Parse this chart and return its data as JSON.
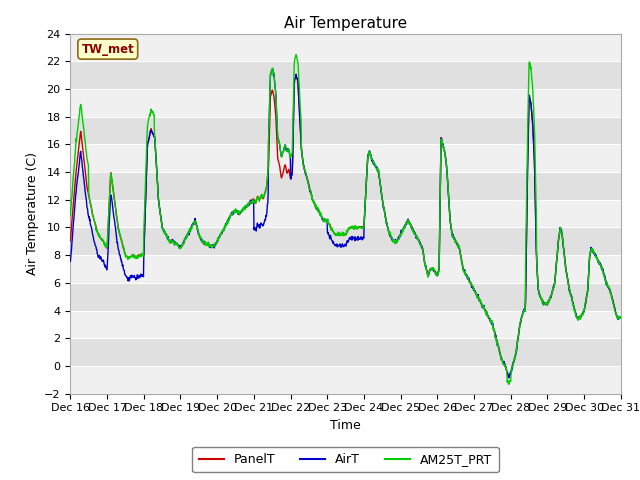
{
  "title": "Air Temperature",
  "ylabel": "Air Temperature (C)",
  "xlabel": "Time",
  "station_label": "TW_met",
  "ylim": [
    -2,
    24
  ],
  "yticks": [
    -2,
    0,
    2,
    4,
    6,
    8,
    10,
    12,
    14,
    16,
    18,
    20,
    22,
    24
  ],
  "series": {
    "PanelT": {
      "color": "#cc0000",
      "lw": 1.0
    },
    "AirT": {
      "color": "#0000cc",
      "lw": 1.0
    },
    "AM25T_PRT": {
      "color": "#00cc00",
      "lw": 1.0
    }
  },
  "fig_bg_color": "#ffffff",
  "plot_bg_color": "#e8e8e8",
  "band_color_light": "#f0f0f0",
  "band_color_dark": "#e0e0e0",
  "title_fontsize": 11,
  "axis_label_fontsize": 9,
  "tick_fontsize": 8,
  "legend_fontsize": 9,
  "waypoints_base": [
    [
      0.0,
      9.0
    ],
    [
      0.15,
      14.0
    ],
    [
      0.28,
      17.0
    ],
    [
      0.45,
      13.0
    ],
    [
      0.6,
      11.0
    ],
    [
      0.75,
      9.5
    ],
    [
      0.9,
      9.0
    ],
    [
      1.0,
      8.5
    ],
    [
      1.1,
      14.0
    ],
    [
      1.2,
      12.0
    ],
    [
      1.3,
      10.0
    ],
    [
      1.4,
      9.0
    ],
    [
      1.5,
      8.0
    ],
    [
      1.6,
      7.8
    ],
    [
      1.7,
      8.0
    ],
    [
      1.8,
      7.8
    ],
    [
      1.9,
      8.0
    ],
    [
      2.0,
      8.0
    ],
    [
      2.1,
      16.0
    ],
    [
      2.2,
      17.0
    ],
    [
      2.3,
      16.5
    ],
    [
      2.4,
      12.0
    ],
    [
      2.5,
      10.0
    ],
    [
      2.6,
      9.5
    ],
    [
      2.7,
      9.0
    ],
    [
      2.8,
      9.0
    ],
    [
      2.9,
      8.8
    ],
    [
      3.0,
      8.5
    ],
    [
      3.1,
      9.0
    ],
    [
      3.2,
      9.5
    ],
    [
      3.3,
      10.0
    ],
    [
      3.4,
      10.5
    ],
    [
      3.5,
      9.5
    ],
    [
      3.6,
      9.0
    ],
    [
      3.7,
      8.8
    ],
    [
      3.8,
      8.7
    ],
    [
      3.9,
      8.6
    ],
    [
      4.0,
      9.0
    ],
    [
      4.1,
      9.5
    ],
    [
      4.2,
      10.0
    ],
    [
      4.3,
      10.5
    ],
    [
      4.4,
      11.0
    ],
    [
      4.5,
      11.2
    ],
    [
      4.6,
      11.0
    ],
    [
      4.7,
      11.3
    ],
    [
      4.8,
      11.5
    ],
    [
      4.9,
      11.8
    ],
    [
      5.0,
      12.0
    ],
    [
      5.05,
      11.8
    ],
    [
      5.1,
      12.2
    ],
    [
      5.15,
      12.0
    ],
    [
      5.2,
      12.3
    ],
    [
      5.25,
      12.1
    ],
    [
      5.3,
      12.5
    ],
    [
      5.35,
      13.0
    ],
    [
      5.4,
      14.5
    ],
    [
      5.45,
      19.5
    ],
    [
      5.5,
      20.0
    ],
    [
      5.55,
      19.5
    ],
    [
      5.6,
      18.0
    ],
    [
      5.65,
      15.0
    ],
    [
      5.7,
      14.5
    ],
    [
      5.75,
      13.5
    ],
    [
      5.8,
      14.0
    ],
    [
      5.85,
      14.5
    ],
    [
      5.9,
      14.0
    ],
    [
      5.95,
      14.2
    ],
    [
      6.0,
      13.5
    ],
    [
      6.05,
      14.0
    ],
    [
      6.1,
      20.5
    ],
    [
      6.15,
      21.0
    ],
    [
      6.2,
      20.5
    ],
    [
      6.25,
      18.0
    ],
    [
      6.3,
      15.5
    ],
    [
      6.35,
      14.5
    ],
    [
      6.4,
      14.0
    ],
    [
      6.45,
      13.5
    ],
    [
      6.5,
      13.0
    ],
    [
      6.6,
      12.0
    ],
    [
      6.7,
      11.5
    ],
    [
      6.8,
      11.0
    ],
    [
      6.9,
      10.5
    ],
    [
      7.0,
      10.5
    ],
    [
      7.1,
      10.0
    ],
    [
      7.2,
      9.5
    ],
    [
      7.3,
      9.5
    ],
    [
      7.4,
      9.5
    ],
    [
      7.5,
      9.5
    ],
    [
      7.6,
      10.0
    ],
    [
      7.7,
      10.0
    ],
    [
      7.8,
      10.0
    ],
    [
      7.9,
      10.0
    ],
    [
      8.0,
      10.0
    ],
    [
      8.1,
      15.0
    ],
    [
      8.15,
      15.5
    ],
    [
      8.2,
      15.0
    ],
    [
      8.3,
      14.5
    ],
    [
      8.4,
      14.0
    ],
    [
      8.5,
      12.0
    ],
    [
      8.6,
      10.5
    ],
    [
      8.7,
      9.5
    ],
    [
      8.8,
      9.0
    ],
    [
      8.9,
      9.0
    ],
    [
      9.0,
      9.5
    ],
    [
      9.1,
      10.0
    ],
    [
      9.2,
      10.5
    ],
    [
      9.3,
      10.0
    ],
    [
      9.4,
      9.5
    ],
    [
      9.5,
      9.0
    ],
    [
      9.6,
      8.5
    ],
    [
      9.65,
      7.5
    ],
    [
      9.7,
      7.0
    ],
    [
      9.75,
      6.5
    ],
    [
      9.8,
      7.0
    ],
    [
      9.9,
      7.0
    ],
    [
      10.0,
      6.5
    ],
    [
      10.05,
      7.0
    ],
    [
      10.1,
      16.5
    ],
    [
      10.15,
      16.0
    ],
    [
      10.2,
      15.5
    ],
    [
      10.25,
      14.5
    ],
    [
      10.3,
      12.5
    ],
    [
      10.35,
      10.5
    ],
    [
      10.4,
      9.5
    ],
    [
      10.5,
      9.0
    ],
    [
      10.6,
      8.5
    ],
    [
      10.7,
      7.0
    ],
    [
      10.8,
      6.5
    ],
    [
      10.9,
      6.0
    ],
    [
      11.0,
      5.5
    ],
    [
      11.1,
      5.0
    ],
    [
      11.2,
      4.5
    ],
    [
      11.3,
      4.0
    ],
    [
      11.4,
      3.5
    ],
    [
      11.5,
      3.0
    ],
    [
      11.6,
      2.0
    ],
    [
      11.7,
      1.0
    ],
    [
      11.75,
      0.5
    ],
    [
      11.8,
      0.2
    ],
    [
      11.85,
      0.0
    ],
    [
      11.9,
      -0.5
    ],
    [
      11.95,
      -0.8
    ],
    [
      12.0,
      -0.5
    ],
    [
      12.05,
      0.0
    ],
    [
      12.1,
      0.5
    ],
    [
      12.15,
      1.0
    ],
    [
      12.2,
      2.0
    ],
    [
      12.25,
      3.0
    ],
    [
      12.3,
      3.5
    ],
    [
      12.35,
      4.0
    ],
    [
      12.4,
      4.0
    ],
    [
      12.45,
      13.0
    ],
    [
      12.5,
      19.5
    ],
    [
      12.55,
      19.0
    ],
    [
      12.6,
      17.5
    ],
    [
      12.65,
      14.5
    ],
    [
      12.7,
      8.0
    ],
    [
      12.75,
      5.5
    ],
    [
      12.8,
      5.0
    ],
    [
      12.9,
      4.5
    ],
    [
      13.0,
      4.5
    ],
    [
      13.1,
      5.0
    ],
    [
      13.2,
      6.0
    ],
    [
      13.3,
      9.0
    ],
    [
      13.35,
      10.0
    ],
    [
      13.4,
      9.5
    ],
    [
      13.5,
      7.0
    ],
    [
      13.6,
      5.5
    ],
    [
      13.7,
      4.5
    ],
    [
      13.8,
      3.5
    ],
    [
      13.9,
      3.5
    ],
    [
      14.0,
      4.0
    ],
    [
      14.1,
      5.5
    ],
    [
      14.15,
      8.0
    ],
    [
      14.2,
      8.5
    ],
    [
      14.3,
      8.0
    ],
    [
      14.4,
      7.5
    ],
    [
      14.5,
      7.0
    ],
    [
      14.6,
      6.0
    ],
    [
      14.7,
      5.5
    ],
    [
      14.8,
      4.5
    ],
    [
      14.9,
      3.5
    ],
    [
      15.0,
      3.5
    ]
  ]
}
